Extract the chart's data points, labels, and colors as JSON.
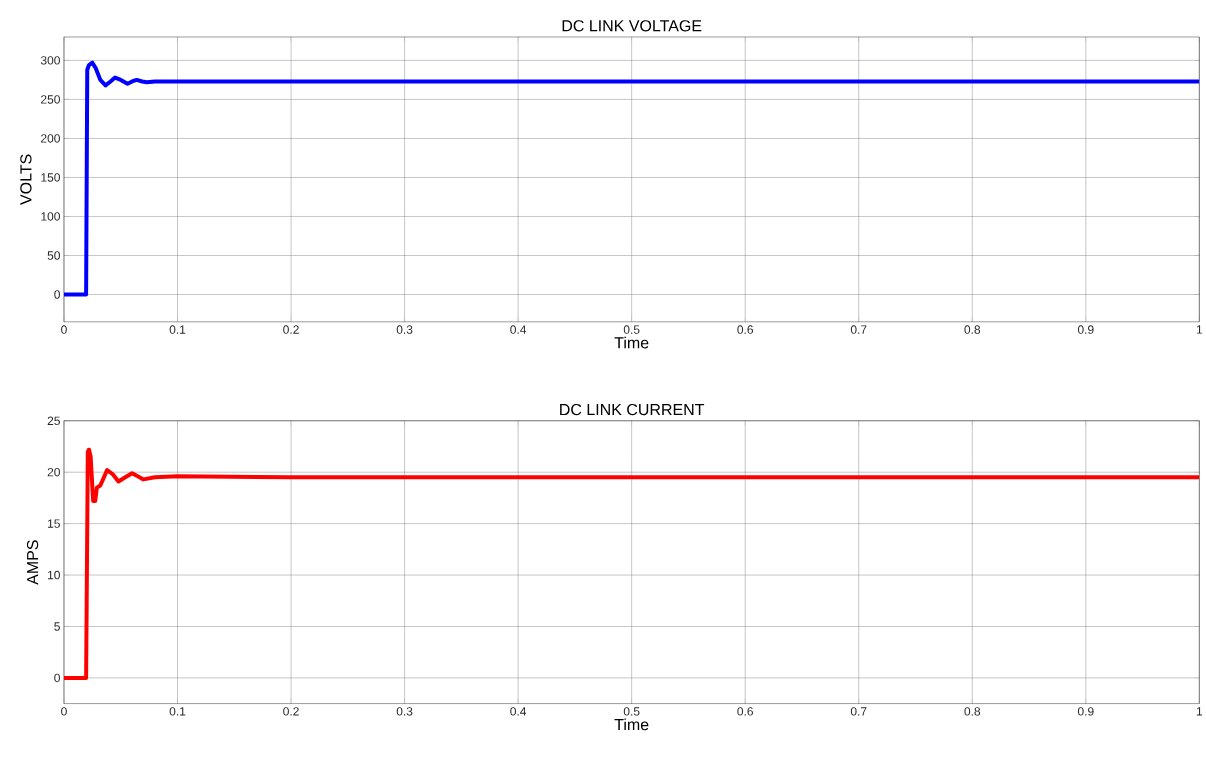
{
  "chart_data": [
    {
      "type": "line",
      "title": "DC LINK VOLTAGE",
      "xlabel": "Time",
      "ylabel": "VOLTS",
      "x": [
        0,
        0.0195,
        0.0205,
        0.022,
        0.025,
        0.028,
        0.032,
        0.0366,
        0.041,
        0.045,
        0.05,
        0.056,
        0.06,
        0.064,
        0.069,
        0.073,
        0.08,
        0.1,
        0.2,
        0.4,
        0.6,
        0.8,
        1
      ],
      "series": [
        {
          "color": "#0000ff",
          "values": [
            0,
            0,
            288,
            294,
            297,
            290,
            275,
            268,
            273,
            278,
            275,
            270,
            273,
            275,
            273,
            272,
            273,
            273,
            273,
            273,
            273,
            273,
            273
          ]
        }
      ],
      "xlim": [
        0,
        1
      ],
      "ylim": [
        -35,
        330
      ],
      "xticks": [
        0,
        0.1,
        0.2,
        0.3,
        0.4,
        0.5,
        0.6,
        0.7,
        0.8,
        0.9,
        1
      ],
      "yticks": [
        0,
        50,
        100,
        150,
        200,
        250,
        300
      ],
      "grid": true,
      "marker": "none",
      "line_style": "solid"
    },
    {
      "type": "line",
      "title": "DC LINK CURRENT",
      "xlabel": "Time",
      "ylabel": "AMPS",
      "x": [
        0,
        0.0195,
        0.021,
        0.022,
        0.0235,
        0.0257,
        0.0275,
        0.029,
        0.032,
        0.038,
        0.043,
        0.048,
        0.054,
        0.06,
        0.065,
        0.07,
        0.08,
        0.1,
        0.2,
        0.4,
        0.6,
        0.8,
        1
      ],
      "series": [
        {
          "color": "#ff0000",
          "values": [
            0,
            0,
            22,
            22.2,
            21.5,
            17.2,
            17.2,
            18.5,
            18.7,
            20.2,
            19.8,
            19.1,
            19.5,
            19.9,
            19.6,
            19.3,
            19.5,
            19.6,
            19.5,
            19.5,
            19.5,
            19.5,
            19.5
          ]
        }
      ],
      "xlim": [
        0,
        1
      ],
      "ylim": [
        -2.5,
        25
      ],
      "xticks": [
        0,
        0.1,
        0.2,
        0.3,
        0.4,
        0.5,
        0.6,
        0.7,
        0.8,
        0.9,
        1
      ],
      "yticks": [
        0,
        5,
        10,
        15,
        20,
        25
      ],
      "grid": true,
      "marker": "none",
      "line_style": "solid"
    }
  ]
}
